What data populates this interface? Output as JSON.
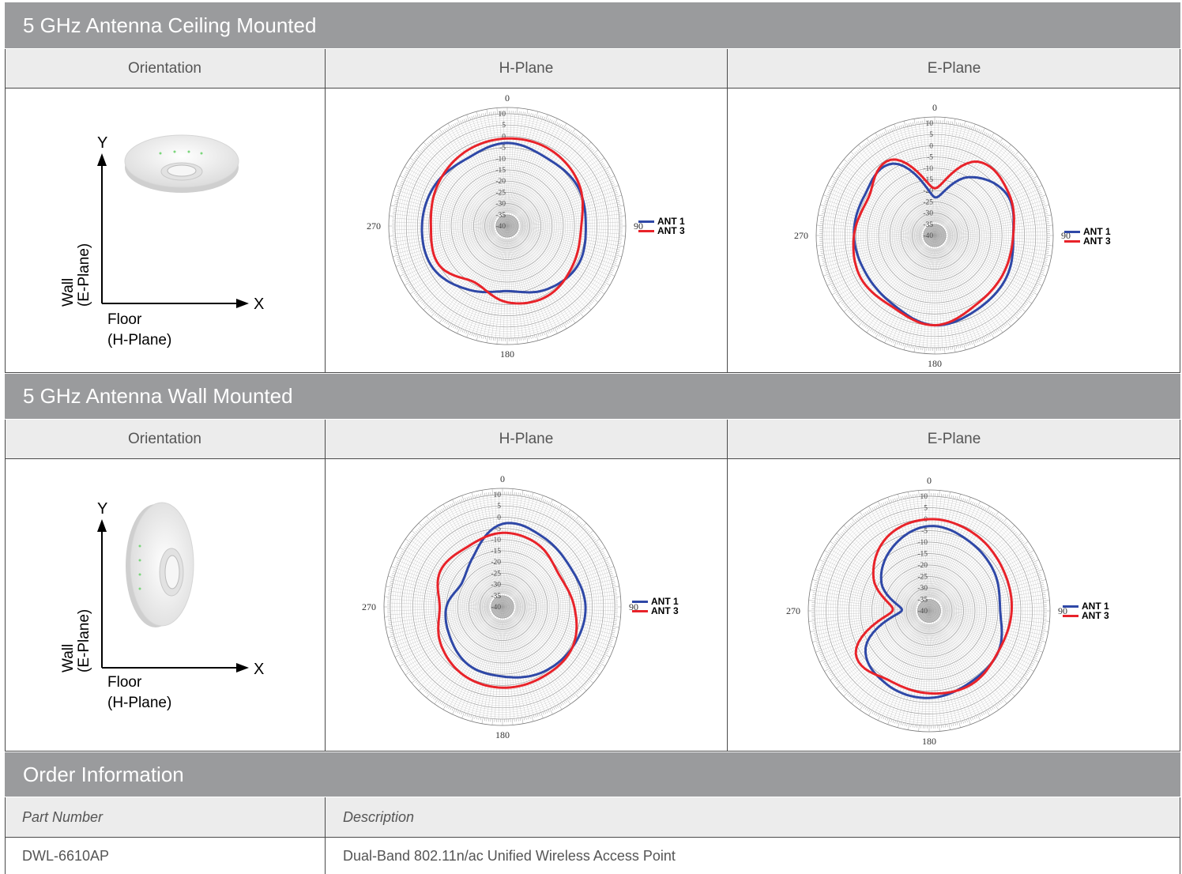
{
  "sections": {
    "ceiling": {
      "title": "5 GHz Antenna Ceiling Mounted",
      "headers": {
        "orientation": "Orientation",
        "hplane": "H-Plane",
        "eplane": "E-Plane"
      }
    },
    "wall": {
      "title": "5 GHz Antenna Wall Mounted",
      "headers": {
        "orientation": "Orientation",
        "hplane": "H-Plane",
        "eplane": "E-Plane"
      }
    }
  },
  "orientation_labels": {
    "y": "Y",
    "x": "X",
    "wall_line1": "Wall",
    "wall_line2": "(E-Plane)",
    "floor_line1": "Floor",
    "floor_line2": "(H-Plane)"
  },
  "polar_labels": {
    "angles": [
      "0",
      "90",
      "180",
      "270"
    ],
    "rings": [
      "10",
      "5",
      "0",
      "-5",
      "-10",
      "-15",
      "-20",
      "-25",
      "-30",
      "-35",
      "-40"
    ]
  },
  "legend": {
    "ant1": "ANT 1",
    "ant3": "ANT 3",
    "ant1_color": "#2f48a7",
    "ant3_color": "#e8232a"
  },
  "chart_data": [
    {
      "type": "polar",
      "name_ref": "ceiling-h-plane",
      "angle_step_deg": 30,
      "r_range_db": [
        -40,
        10
      ],
      "series": [
        {
          "name": "ANT 1",
          "values": [
            -3,
            -5,
            -4,
            -5,
            -4,
            -7,
            -11,
            -7,
            -2,
            -2,
            -3,
            -5
          ]
        },
        {
          "name": "ANT 3",
          "values": [
            -1,
            -1,
            -3,
            -7,
            -6,
            -4,
            -6,
            -11,
            -5,
            -6,
            -4,
            -2
          ]
        }
      ]
    },
    {
      "type": "polar",
      "name_ref": "ceiling-e-plane",
      "angle_step_deg": 30,
      "r_range_db": [
        -40,
        10
      ],
      "series": [
        {
          "name": "ANT 1",
          "values": [
            -23,
            -10,
            -3,
            -5,
            -3,
            -2,
            0,
            -4,
            -5,
            -4,
            -4,
            -3
          ]
        },
        {
          "name": "ANT 3",
          "values": [
            -19,
            -2,
            -2,
            -5,
            -5,
            -4,
            0,
            -3,
            -2,
            -4,
            -6,
            -1
          ]
        }
      ]
    },
    {
      "type": "polar",
      "name_ref": "wall-h-plane",
      "angle_step_deg": 30,
      "r_range_db": [
        -40,
        10
      ],
      "series": [
        {
          "name": "ANT 1",
          "values": [
            -3,
            -4,
            -5,
            -3,
            -4,
            -6,
            -9,
            -10,
            -13,
            -15,
            -19,
            -14
          ]
        },
        {
          "name": "ANT 3",
          "values": [
            -7,
            -8,
            -11,
            -8,
            -4,
            -4,
            -4,
            -5,
            -8,
            -12,
            -8,
            -9
          ]
        }
      ]
    },
    {
      "type": "polar",
      "name_ref": "wall-e-plane",
      "angle_step_deg": 30,
      "r_range_db": [
        -40,
        10
      ],
      "series": [
        {
          "name": "ANT 1",
          "values": [
            -3,
            -5,
            -7,
            -9,
            -5,
            -4,
            -2,
            -3,
            -8,
            -28,
            -16,
            -8
          ]
        },
        {
          "name": "ANT 3",
          "values": [
            0,
            -1,
            -3,
            -4,
            -5,
            -3,
            -4,
            -5,
            -3,
            -24,
            -12,
            -3
          ]
        }
      ]
    }
  ],
  "order": {
    "title": "Order Information",
    "headers": {
      "part": "Part Number",
      "desc": "Description"
    },
    "rows": [
      {
        "part": "DWL-6610AP",
        "desc": "Dual-Band 802.11n/ac Unified Wireless Access Point"
      }
    ]
  }
}
